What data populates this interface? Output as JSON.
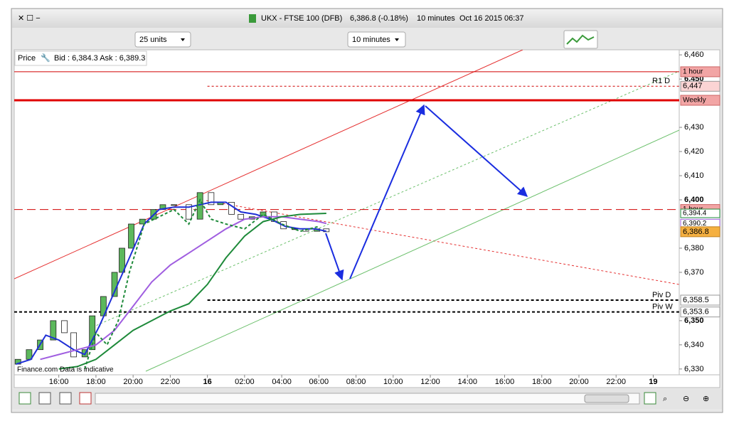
{
  "window": {
    "title": "UKX - FTSE 100 (DFB)",
    "quote": "6,386.8 (-0.18%)",
    "interval": "10 minutes",
    "timestamp": "Oct 16 2015 06:37"
  },
  "toolbar": {
    "units": "25 units",
    "timeframe": "10 minutes"
  },
  "info": {
    "price_label": "Price",
    "bid_ask": "Bid : 6,384.3 Ask : 6,389.3"
  },
  "watermark": "Finance.com Data is indicative",
  "chart_data": {
    "type": "candlestick",
    "x": [
      13.8,
      14.4,
      15.0,
      15.7,
      16.3,
      16.8,
      17.4,
      17.8,
      18.4,
      19.0,
      19.4,
      19.9,
      20.5,
      21.1,
      21.6,
      22.2,
      23.0,
      23.6,
      24.2,
      24.7,
      25.3,
      25.8,
      26.4,
      27.0,
      27.6,
      28.1,
      28.7,
      29.3,
      29.9,
      30.4
    ],
    "open": [
      6332,
      6334,
      6338,
      6342,
      6350,
      6345,
      6335,
      6338,
      6352,
      6360,
      6370,
      6380,
      6390,
      6392,
      6396,
      6398,
      6398,
      6392,
      6403,
      6398,
      6399,
      6394,
      6392,
      6393,
      6395,
      6391,
      6388,
      6388,
      6387,
      6388
    ],
    "close": [
      6334,
      6338,
      6342,
      6350,
      6345,
      6335,
      6338,
      6352,
      6360,
      6370,
      6380,
      6390,
      6392,
      6396,
      6398,
      6398,
      6392,
      6403,
      6398,
      6399,
      6394,
      6392,
      6393,
      6395,
      6391,
      6388,
      6388,
      6387,
      6388,
      6386.8
    ],
    "last_label": "6,386.8",
    "up_color": "#5cb85c",
    "down_color": "#ffffff",
    "xlim": [
      13.6,
      49.4
    ],
    "ylim": [
      6327.6,
      6462.1
    ],
    "xticks": [
      {
        "value": 16,
        "label": "16:00"
      },
      {
        "value": 18,
        "label": "18:00"
      },
      {
        "value": 20,
        "label": "20:00"
      },
      {
        "value": 22,
        "label": "22:00"
      },
      {
        "value": 24,
        "label": "16"
      },
      {
        "value": 26,
        "label": "02:00"
      },
      {
        "value": 28,
        "label": "04:00"
      },
      {
        "value": 30,
        "label": "06:00"
      },
      {
        "value": 32,
        "label": "08:00"
      },
      {
        "value": 34,
        "label": "10:00"
      },
      {
        "value": 36,
        "label": "12:00"
      },
      {
        "value": 38,
        "label": "14:00"
      },
      {
        "value": 40,
        "label": "16:00"
      },
      {
        "value": 42,
        "label": "18:00"
      },
      {
        "value": 44,
        "label": "20:00"
      },
      {
        "value": 46,
        "label": "22:00"
      },
      {
        "value": 48,
        "label": "19"
      }
    ],
    "yticks": [
      {
        "value": 6460,
        "label": "6,460"
      },
      {
        "value": 6450,
        "label": "6,450"
      },
      {
        "value": 6430,
        "label": "6,430"
      },
      {
        "value": 6420,
        "label": "6,420"
      },
      {
        "value": 6410,
        "label": "6,410"
      },
      {
        "value": 6400,
        "label": "6,400"
      },
      {
        "value": 6380,
        "label": "6,380"
      },
      {
        "value": 6370,
        "label": "6,370"
      },
      {
        "value": 6350,
        "label": "6,350"
      },
      {
        "value": 6340,
        "label": "6,340"
      },
      {
        "value": 6330,
        "label": "6,330"
      }
    ],
    "series": [
      {
        "color": "#1f2fd6",
        "dashed": false,
        "x": [
          13.7,
          14.5,
          15.3,
          16.0,
          16.8,
          17.4,
          18.2,
          19.0,
          19.8,
          20.6,
          21.4,
          22.2,
          23.0,
          23.6,
          24.2,
          25.0,
          25.8,
          26.6,
          27.4,
          28.2,
          29.0,
          29.8,
          30.4
        ],
        "values": [
          6332,
          6334,
          6344,
          6342,
          6338,
          6336,
          6348,
          6362,
          6376,
          6390,
          6396,
          6397,
          6397,
          6398,
          6399,
          6399,
          6395,
          6394,
          6392,
          6389,
          6388,
          6388,
          6387
        ]
      },
      {
        "color": "#a05ee0",
        "dashed": false,
        "end_label": "6,390.2",
        "x": [
          15.0,
          16.0,
          17.0,
          18.0,
          19.0,
          20.0,
          21.0,
          22.0,
          23.0,
          24.0,
          25.0,
          26.0,
          27.0,
          28.0,
          29.0,
          30.0,
          30.4
        ],
        "values": [
          6334,
          6336,
          6338,
          6340,
          6346,
          6356,
          6366,
          6373,
          6378,
          6383,
          6388,
          6392,
          6393,
          6393,
          6392,
          6391,
          6390.2
        ]
      },
      {
        "color": "#1e8a3a",
        "dashed": false,
        "end_label": "6,394.4",
        "x": [
          16.0,
          17.0,
          18.0,
          19.0,
          20.0,
          21.0,
          22.0,
          23.0,
          24.0,
          25.0,
          26.0,
          27.0,
          28.0,
          29.0,
          30.4
        ],
        "values": [
          6330,
          6331,
          6334,
          6340,
          6346,
          6350,
          6354,
          6357,
          6365,
          6376,
          6385,
          6391,
          6393,
          6394,
          6394.4
        ]
      },
      {
        "color": "#1e8a3a",
        "dashed": true,
        "x": [
          17.4,
          18.0,
          18.6,
          19.2,
          19.8,
          20.6,
          21.4,
          22.2,
          23.0,
          23.6,
          24.2,
          25.0,
          26.0,
          27.0,
          28.0,
          29.0,
          30.0
        ],
        "values": [
          6330,
          6345,
          6340,
          6350,
          6370,
          6390,
          6393,
          6396,
          6390,
          6400,
          6392,
          6390,
          6388,
          6394,
          6390,
          6387,
          6389
        ]
      }
    ],
    "levels": [
      {
        "name": "1 hour",
        "value": 6453,
        "color": "#d00000",
        "style": "solid"
      },
      {
        "name": "R1 D",
        "value": 6447,
        "value_label": "6,447",
        "color": "#d00000",
        "style": "dashed"
      },
      {
        "name": "Weekly",
        "value": 6441.2,
        "color": "#e00000",
        "style": "thick"
      },
      {
        "name": "1 hour",
        "value": 6396,
        "color": "#d00000",
        "style": "longdash"
      },
      {
        "name": "Piv D",
        "value": 6358.5,
        "value_label": "6,358.5",
        "color": "#000000",
        "style": "dashed"
      },
      {
        "name": "Piv W",
        "value": 6353.6,
        "value_label": "6,353.6",
        "color": "#000000",
        "style": "dashed"
      }
    ]
  }
}
